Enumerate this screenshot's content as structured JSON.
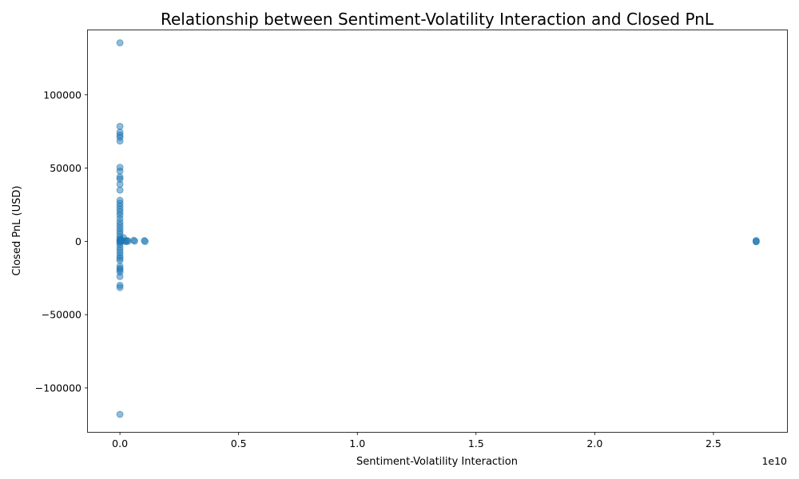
{
  "chart_data": {
    "type": "scatter",
    "title": "Relationship between Sentiment-Volatility Interaction and Closed PnL",
    "xlabel": "Sentiment-Volatility Interaction",
    "ylabel": "Closed PnL (USD)",
    "x_offset_label": "1e10",
    "xlim": [
      -1350000000.0,
      28100000000.0
    ],
    "ylim": [
      -130000,
      144000
    ],
    "x_ticks": [
      0,
      5000000000.0,
      10000000000.0,
      15000000000.0,
      20000000000.0,
      25000000000.0
    ],
    "x_tick_labels": [
      "0.0",
      "0.5",
      "1.0",
      "1.5",
      "2.0",
      "2.5"
    ],
    "y_ticks": [
      -100000,
      -50000,
      0,
      50000,
      100000
    ],
    "y_tick_labels": [
      "−100000",
      "−50000",
      "0",
      "50000",
      "100000"
    ],
    "grid": false,
    "legend": "none",
    "color": "#1f77b4",
    "points": [
      {
        "x": 0,
        "y": 135500
      },
      {
        "x": 0,
        "y": 78500
      },
      {
        "x": 0,
        "y": 74500
      },
      {
        "x": 0,
        "y": 72500
      },
      {
        "x": 0,
        "y": 71000
      },
      {
        "x": 0,
        "y": 68500
      },
      {
        "x": 0,
        "y": 50500
      },
      {
        "x": 0,
        "y": 48000
      },
      {
        "x": 0,
        "y": 44000
      },
      {
        "x": 0,
        "y": 42500
      },
      {
        "x": 0,
        "y": 39000
      },
      {
        "x": 0,
        "y": 35000
      },
      {
        "x": 0,
        "y": 28000
      },
      {
        "x": 0,
        "y": 26000
      },
      {
        "x": 0,
        "y": 24000
      },
      {
        "x": 0,
        "y": 22000
      },
      {
        "x": 0,
        "y": 20000
      },
      {
        "x": 0,
        "y": 18000
      },
      {
        "x": 0,
        "y": 15500
      },
      {
        "x": 0,
        "y": 13000
      },
      {
        "x": 0,
        "y": 11000
      },
      {
        "x": 0,
        "y": 9000
      },
      {
        "x": 0,
        "y": 7000
      },
      {
        "x": 0,
        "y": 5000
      },
      {
        "x": 0,
        "y": 3000
      },
      {
        "x": 0,
        "y": 1500
      },
      {
        "x": 0,
        "y": 500
      },
      {
        "x": 0,
        "y": 0
      },
      {
        "x": 0,
        "y": -500
      },
      {
        "x": 0,
        "y": -2000
      },
      {
        "x": 0,
        "y": -4000
      },
      {
        "x": 0,
        "y": -6000
      },
      {
        "x": 0,
        "y": -8000
      },
      {
        "x": 0,
        "y": -10000
      },
      {
        "x": 0,
        "y": -11500
      },
      {
        "x": 0,
        "y": -13000
      },
      {
        "x": 0,
        "y": -17000
      },
      {
        "x": 0,
        "y": -18500
      },
      {
        "x": 0,
        "y": -19500
      },
      {
        "x": 0,
        "y": -21000
      },
      {
        "x": 0,
        "y": -24000
      },
      {
        "x": 0,
        "y": -30000
      },
      {
        "x": 0,
        "y": -31500
      },
      {
        "x": 0,
        "y": -118000
      },
      {
        "x": 25000000.0,
        "y": 1200
      },
      {
        "x": 60000000.0,
        "y": 800
      },
      {
        "x": 100000000.0,
        "y": 400
      },
      {
        "x": 150000000.0,
        "y": 2500
      },
      {
        "x": 200000000.0,
        "y": 300
      },
      {
        "x": 260000000.0,
        "y": -200
      },
      {
        "x": 300000000.0,
        "y": 600
      },
      {
        "x": 340000000.0,
        "y": 100
      },
      {
        "x": 580000000.0,
        "y": 700
      },
      {
        "x": 620000000.0,
        "y": 200
      },
      {
        "x": 1030000000.0,
        "y": 500
      },
      {
        "x": 1060000000.0,
        "y": -100
      },
      {
        "x": 26800000000.0,
        "y": 600
      },
      {
        "x": 26800000000.0,
        "y": 0
      },
      {
        "x": 26800000000.0,
        "y": -300
      }
    ]
  }
}
